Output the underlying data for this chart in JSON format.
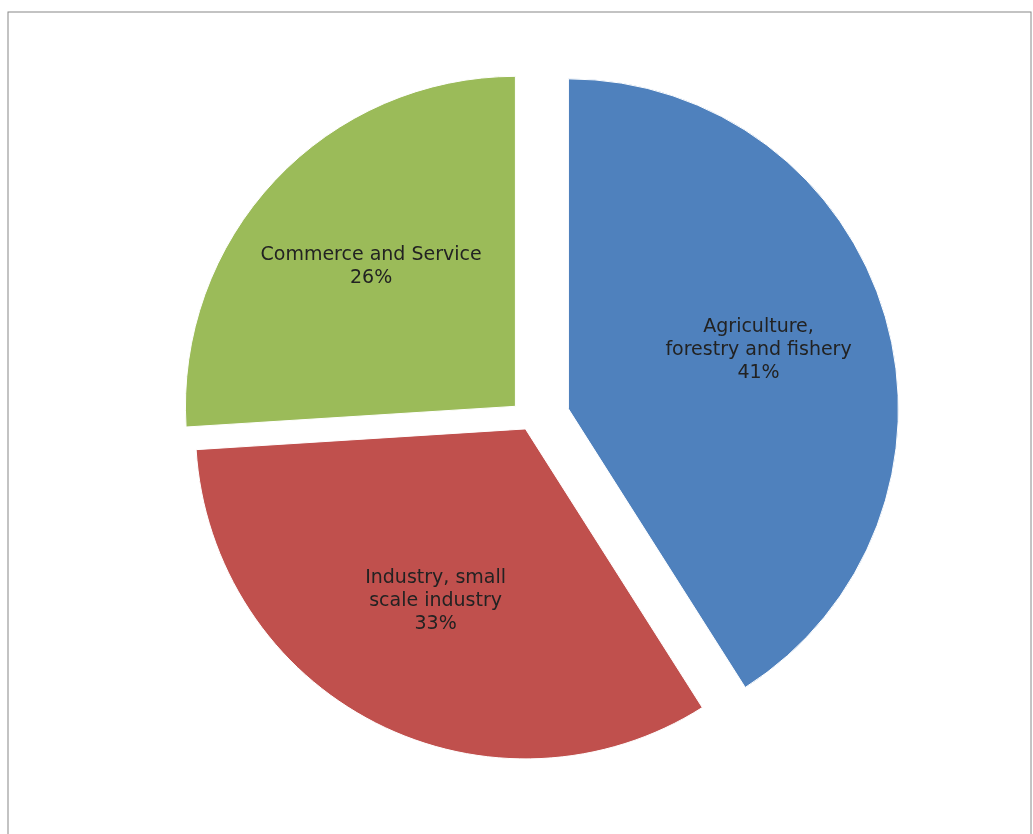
{
  "chart_data": {
    "type": "pie",
    "categories": [
      "Agriculture, forestry and fishery",
      "Industry, small scale industry",
      "Commerce and Service"
    ],
    "values": [
      41,
      33,
      26
    ],
    "value_labels": [
      "41%",
      "33%",
      "26%"
    ],
    "colors": [
      "#4f81bd",
      "#c0504d",
      "#9bbb59"
    ]
  }
}
